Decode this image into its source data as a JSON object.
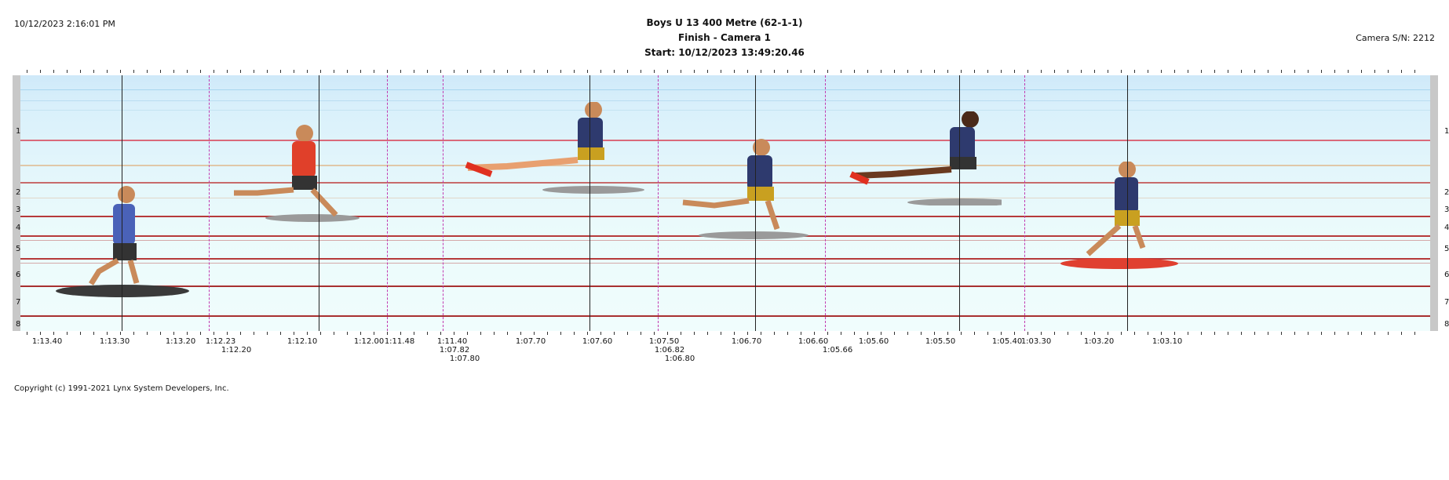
{
  "header": {
    "timestamp": "10/12/2023 2:16:01 PM",
    "title": "Boys U 13 400 Metre (62-1-1)",
    "subtitle": "Finish - Camera 1",
    "start": "Start: 10/12/2023 13:49:20.46",
    "camera_sn": "Camera S/N: 2212"
  },
  "lanes": [
    "1",
    "2",
    "3",
    "4",
    "5",
    "6",
    "7",
    "8"
  ],
  "time_labels_row1": [
    "1:13.40",
    "1:13.30",
    "1:13.20",
    "1:12.23",
    "1:12.10",
    "1:12.00",
    "1:11.48",
    "1:11.40",
    "1:07.70",
    "1:07.60",
    "1:07.50",
    "1:06.70",
    "1:06.60",
    "1:05.60",
    "1:05.50",
    "1:05.40",
    "1:03.30",
    "1:03.20",
    "1:03.10"
  ],
  "time_labels_row2": [
    "1:12.20",
    "1:07.82",
    "1:06.82",
    "1:05.66"
  ],
  "time_labels_row3": [
    "1:07.80",
    "1:06.80"
  ],
  "footer": {
    "copyright": "Copyright (c) 1991-2021 Lynx System Developers, Inc."
  },
  "colors": {
    "lane_line": "#b63a3a",
    "dashed_marker": "#c23ab0",
    "solid_marker": "#222222",
    "sky_top": "#cfe9f9"
  }
}
